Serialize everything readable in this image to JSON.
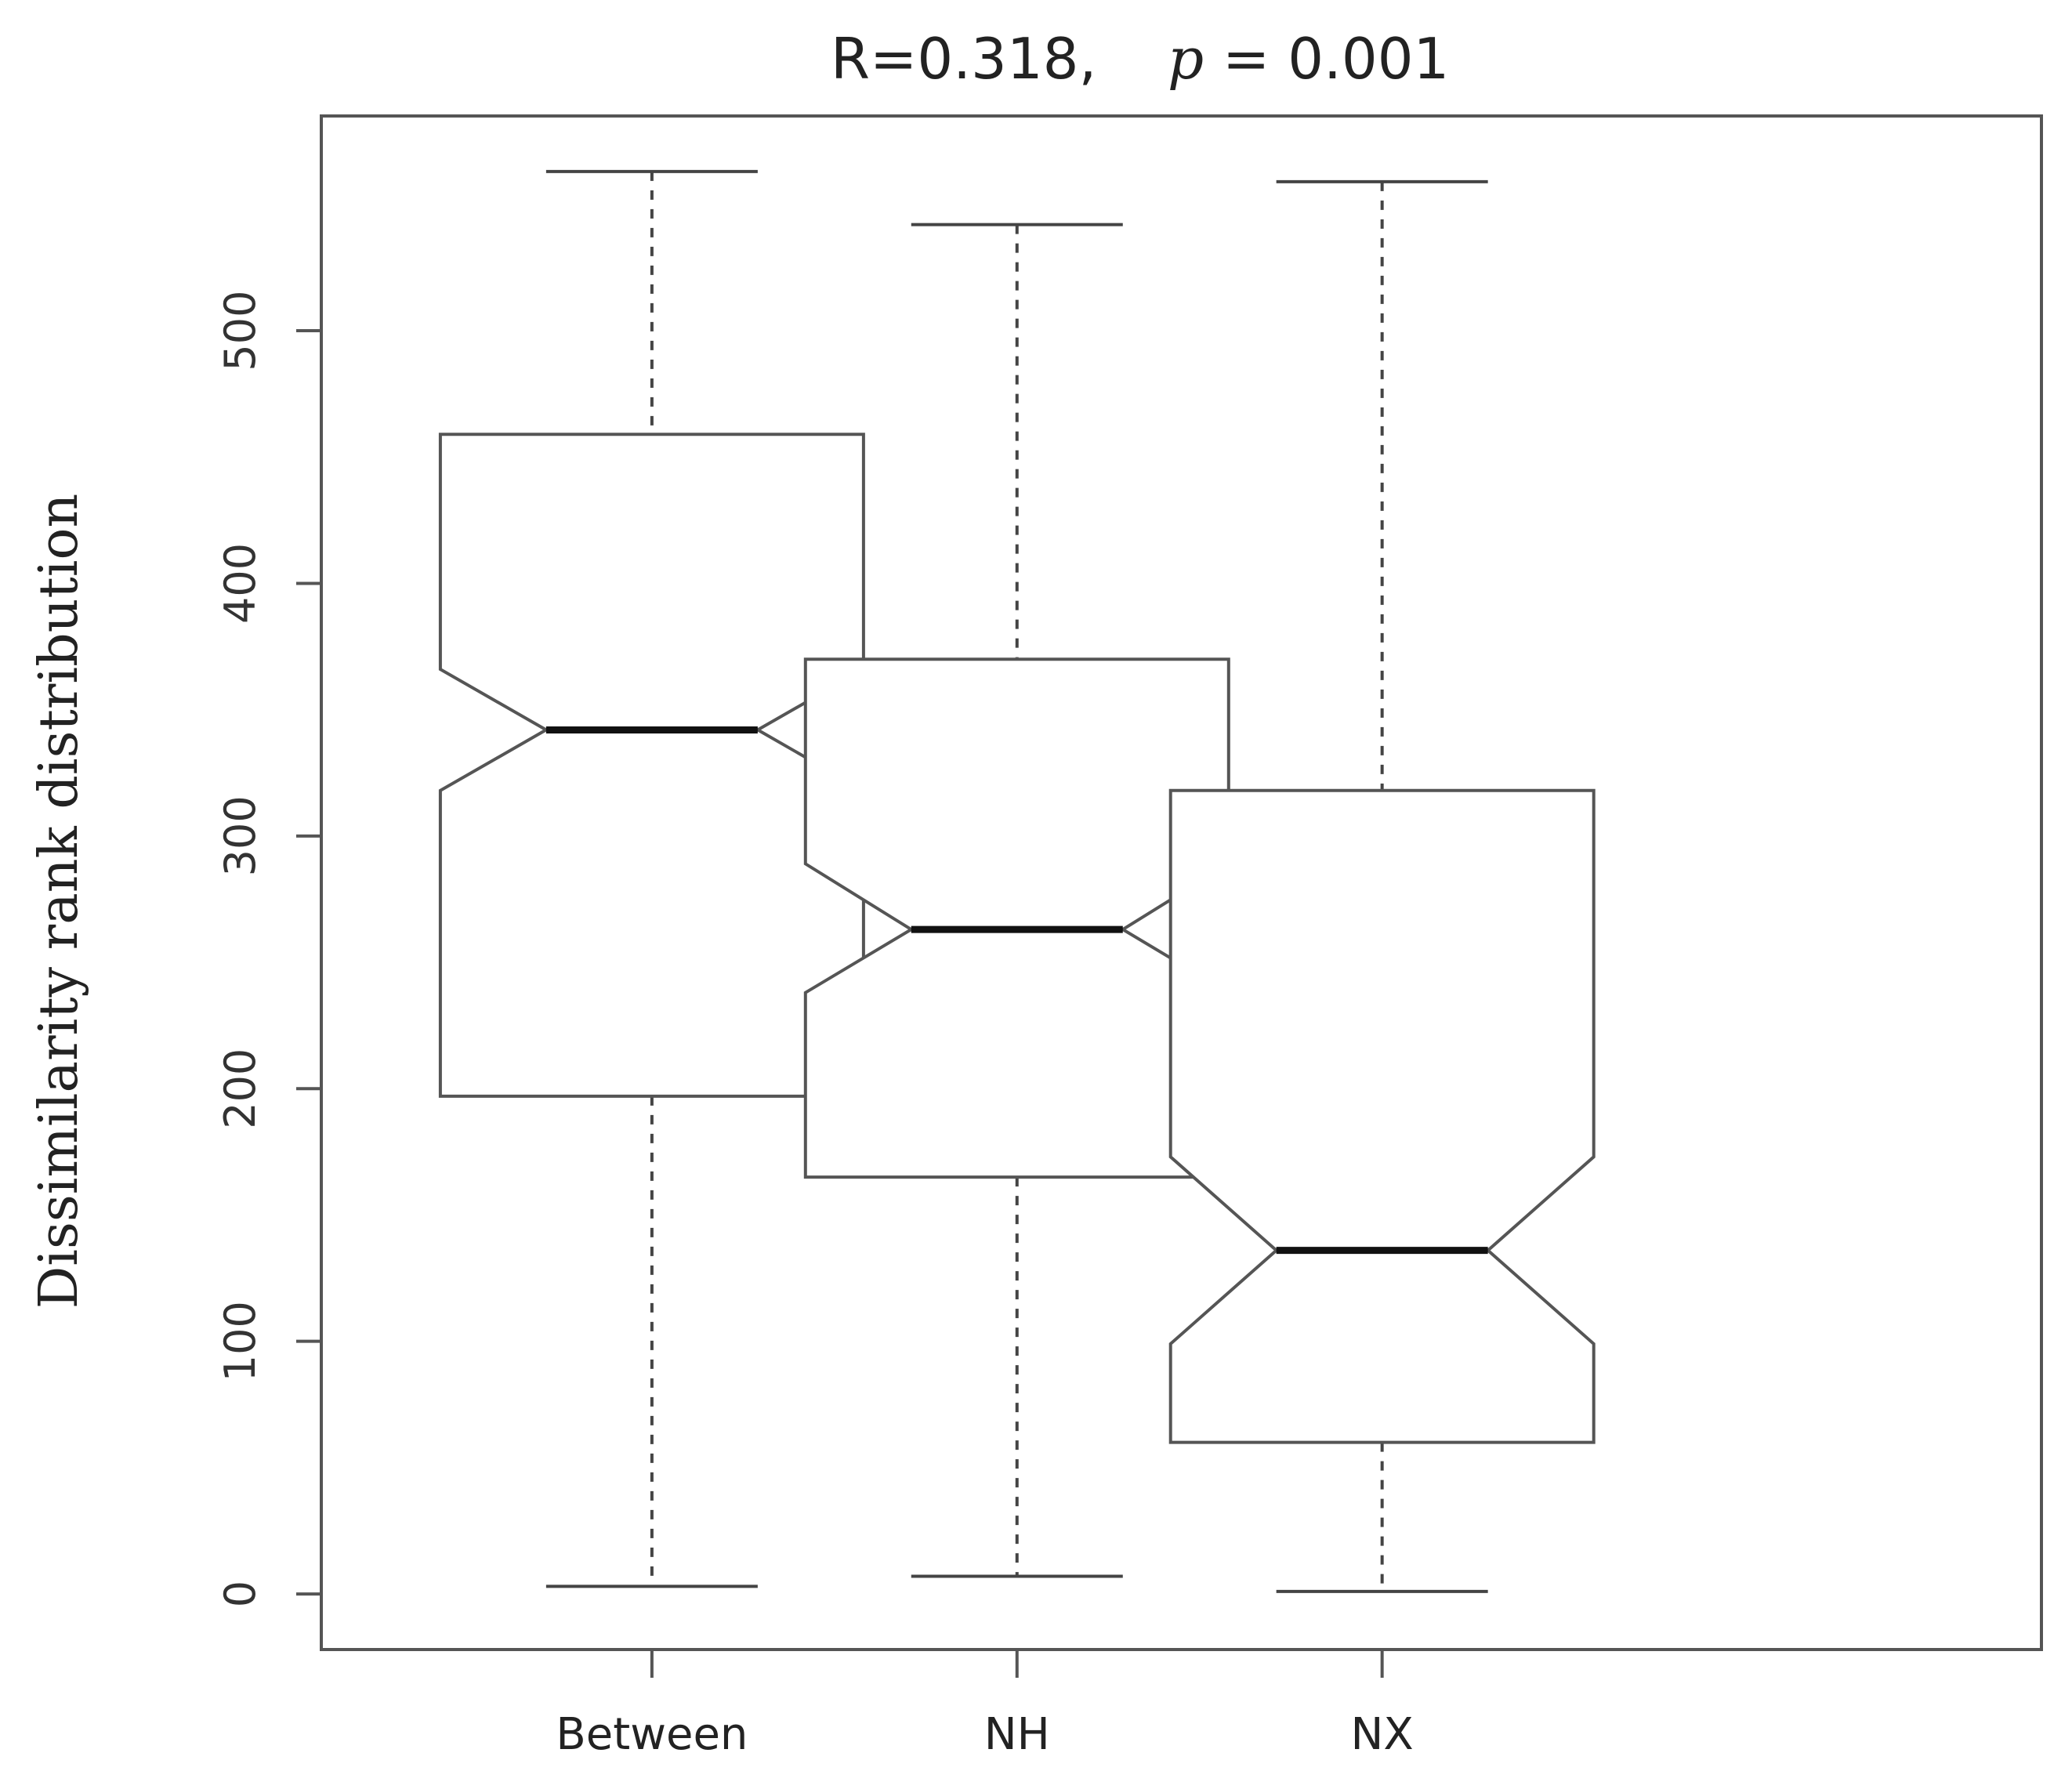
{
  "chart_data": {
    "type": "boxplot",
    "notched": true,
    "title": {
      "stat_text": "R=0.318,",
      "p_symbol": "p",
      "p_text": "= 0.001"
    },
    "xlabel": "",
    "ylabel": "Dissimilarity rank distribution",
    "ylim": [
      -22,
      585
    ],
    "yticks": [
      0,
      100,
      200,
      300,
      400,
      500
    ],
    "grid": false,
    "categories": [
      "Between",
      "NH",
      "NX"
    ],
    "boxes": [
      {
        "name": "Between",
        "whisker_low": 3,
        "q1": 197,
        "median": 342,
        "q3": 459,
        "whisker_high": 563,
        "notch_low": 318,
        "notch_high": 366
      },
      {
        "name": "NH",
        "whisker_low": 7,
        "q1": 165,
        "median": 263,
        "q3": 370,
        "whisker_high": 542,
        "notch_low": 238,
        "notch_high": 289
      },
      {
        "name": "NX",
        "whisker_low": 1,
        "q1": 60,
        "median": 136,
        "q3": 318,
        "whisker_high": 559,
        "notch_low": 99,
        "notch_high": 173
      }
    ],
    "colors": {
      "box_fill": "#ffffff",
      "box_stroke": "#555555",
      "median": "#111111",
      "whisker": "#444444"
    }
  }
}
